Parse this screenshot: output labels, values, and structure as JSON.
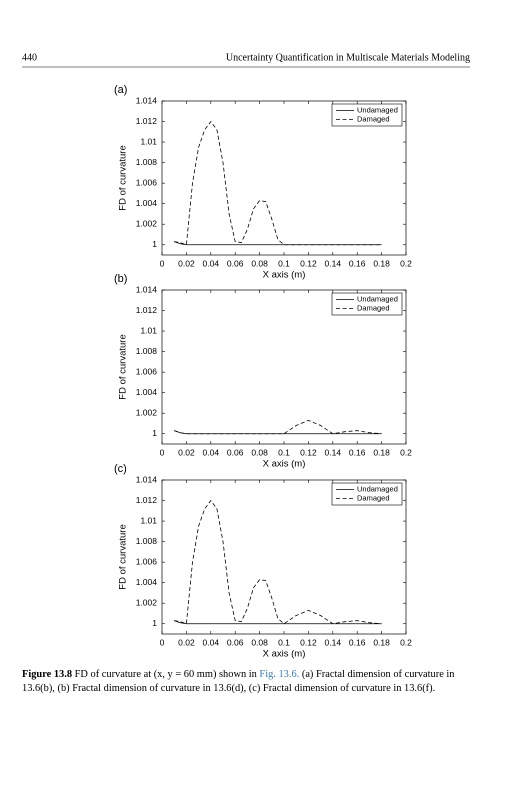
{
  "header": {
    "page_number": "440",
    "running_title": "Uncertainty Quantification in Multiscale Materials Modeling"
  },
  "caption": {
    "label": "Figure 13.8",
    "text_before": "FD of curvature at (x, y = 60 mm) shown in ",
    "link": "Fig. 13.6.",
    "text_after": " (a) Fractal dimension of curvature in 13.6(b), (b) Fractal dimension of curvature in 13.6(d), (c) Fractal dimension of curvature in 13.6(f)."
  },
  "chart_data": [
    {
      "type": "line",
      "label": "(a)",
      "xlabel": "X axis (m)",
      "ylabel": "FD of curvature",
      "xlim": [
        0,
        0.2
      ],
      "xticks": [
        0,
        0.02,
        0.04,
        0.06,
        0.08,
        0.1,
        0.12,
        0.14,
        0.16,
        0.18,
        0.2
      ],
      "ylim": [
        0.999,
        1.014
      ],
      "yticks": [
        1,
        1.002,
        1.004,
        1.006,
        1.008,
        1.01,
        1.012,
        1.014
      ],
      "legend": "upper right",
      "x": [
        0.01,
        0.015,
        0.02,
        0.025,
        0.03,
        0.035,
        0.04,
        0.045,
        0.05,
        0.055,
        0.06,
        0.065,
        0.07,
        0.075,
        0.08,
        0.085,
        0.09,
        0.095,
        0.1,
        0.11,
        0.12,
        0.13,
        0.14,
        0.15,
        0.16,
        0.17,
        0.18
      ],
      "series": [
        {
          "name": "Undamaged",
          "color": "#000000",
          "line_style": "solid",
          "values": [
            1.0003,
            1.0001,
            1,
            1,
            1,
            1,
            1,
            1,
            1,
            1,
            1,
            1,
            1,
            1,
            1,
            1,
            1,
            1,
            1,
            1,
            1,
            1,
            1,
            1,
            1,
            1,
            1
          ]
        },
        {
          "name": "Damaged",
          "color": "#000000",
          "line_style": "dashed",
          "values": [
            1.0003,
            1.0002,
            1,
            1.006,
            1.0095,
            1.0112,
            1.012,
            1.0112,
            1.008,
            1.003,
            1.0003,
            1.0002,
            1.0015,
            1.0035,
            1.0043,
            1.0042,
            1.0025,
            1.0005,
            1,
            1,
            1,
            1,
            1,
            1,
            1,
            1,
            1
          ]
        }
      ]
    },
    {
      "type": "line",
      "label": "(b)",
      "xlabel": "X axis (m)",
      "ylabel": "FD of curvature",
      "xlim": [
        0,
        0.2
      ],
      "xticks": [
        0,
        0.02,
        0.04,
        0.06,
        0.08,
        0.1,
        0.12,
        0.14,
        0.16,
        0.18,
        0.2
      ],
      "ylim": [
        0.999,
        1.014
      ],
      "yticks": [
        1,
        1.002,
        1.004,
        1.006,
        1.008,
        1.01,
        1.012,
        1.014
      ],
      "legend": "upper right",
      "x": [
        0.01,
        0.015,
        0.02,
        0.025,
        0.03,
        0.035,
        0.04,
        0.045,
        0.05,
        0.055,
        0.06,
        0.065,
        0.07,
        0.075,
        0.08,
        0.085,
        0.09,
        0.095,
        0.1,
        0.11,
        0.12,
        0.13,
        0.14,
        0.15,
        0.16,
        0.17,
        0.18
      ],
      "series": [
        {
          "name": "Undamaged",
          "color": "#000000",
          "line_style": "solid",
          "values": [
            1.0003,
            1.0001,
            1,
            1,
            1,
            1,
            1,
            1,
            1,
            1,
            1,
            1,
            1,
            1,
            1,
            1,
            1,
            1,
            1,
            1,
            1,
            1,
            1,
            1,
            1,
            1,
            1
          ]
        },
        {
          "name": "Damaged",
          "color": "#000000",
          "line_style": "dashed",
          "values": [
            1.0003,
            1.0001,
            1,
            1,
            1,
            1,
            1,
            1,
            1,
            1,
            1,
            1,
            1,
            1,
            1,
            1,
            1,
            1,
            1,
            1.0008,
            1.0013,
            1.0008,
            1,
            1.0002,
            1.0003,
            1.0001,
            1
          ]
        }
      ]
    },
    {
      "type": "line",
      "label": "(c)",
      "xlabel": "X axis (m)",
      "ylabel": "FD of curvature",
      "xlim": [
        0,
        0.2
      ],
      "xticks": [
        0,
        0.02,
        0.04,
        0.06,
        0.08,
        0.1,
        0.12,
        0.14,
        0.16,
        0.18,
        0.2
      ],
      "ylim": [
        0.999,
        1.014
      ],
      "yticks": [
        1,
        1.002,
        1.004,
        1.006,
        1.008,
        1.01,
        1.012,
        1.014
      ],
      "legend": "upper right",
      "x": [
        0.01,
        0.015,
        0.02,
        0.025,
        0.03,
        0.035,
        0.04,
        0.045,
        0.05,
        0.055,
        0.06,
        0.065,
        0.07,
        0.075,
        0.08,
        0.085,
        0.09,
        0.095,
        0.1,
        0.11,
        0.12,
        0.13,
        0.14,
        0.15,
        0.16,
        0.17,
        0.18
      ],
      "series": [
        {
          "name": "Undamaged",
          "color": "#000000",
          "line_style": "solid",
          "values": [
            1.0003,
            1.0001,
            1,
            1,
            1,
            1,
            1,
            1,
            1,
            1,
            1,
            1,
            1,
            1,
            1,
            1,
            1,
            1,
            1,
            1,
            1,
            1,
            1,
            1,
            1,
            1,
            1
          ]
        },
        {
          "name": "Damaged",
          "color": "#000000",
          "line_style": "dashed",
          "values": [
            1.0003,
            1.0002,
            1,
            1.006,
            1.0095,
            1.0112,
            1.012,
            1.0112,
            1.008,
            1.003,
            1.0003,
            1.0002,
            1.0015,
            1.0035,
            1.0043,
            1.0042,
            1.0025,
            1.0005,
            1,
            1.0008,
            1.0013,
            1.0008,
            1,
            1.0002,
            1.0003,
            1.0001,
            1
          ]
        }
      ]
    }
  ]
}
